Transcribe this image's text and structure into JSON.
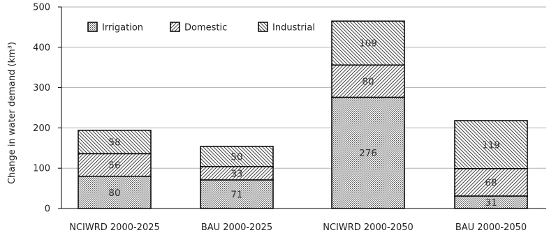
{
  "chart_data": {
    "type": "bar",
    "stacked": true,
    "title": "",
    "xlabel": "",
    "ylabel": "Change in water demand  (km³)",
    "ylim": [
      0,
      500
    ],
    "yticks": [
      0,
      100,
      200,
      300,
      400,
      500
    ],
    "grid": true,
    "legend_position": "top-left",
    "categories": [
      "NCIWRD 2000-2025",
      "BAU 2000-2025",
      "NCIWRD 2000-2050",
      "BAU 2000-2050"
    ],
    "series": [
      {
        "name": "Irrigation",
        "pattern": "dots",
        "values": [
          80,
          71,
          276,
          31
        ]
      },
      {
        "name": "Domestic",
        "pattern": "diagonal-up",
        "values": [
          56,
          33,
          80,
          68
        ]
      },
      {
        "name": "Industrial",
        "pattern": "diagonal-down",
        "values": [
          58,
          50,
          109,
          119
        ]
      }
    ],
    "colors": {
      "bar_fill": "#ffffff",
      "pattern": "#444444",
      "outline": "#000000",
      "grid": "#b0b0b0"
    }
  }
}
